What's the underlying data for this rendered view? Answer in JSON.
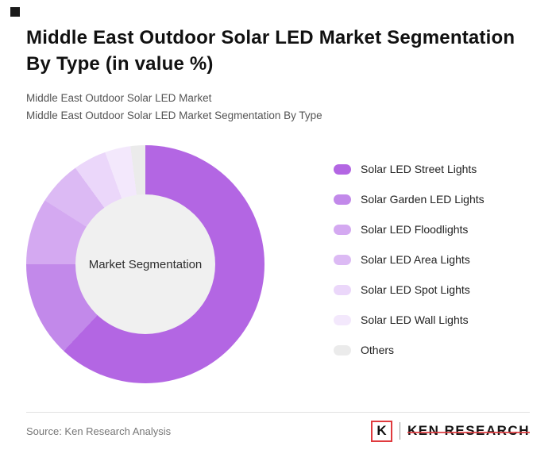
{
  "page": {
    "corner_square_color": "#1a1a1a"
  },
  "header": {
    "title_line1": "Middle East Outdoor Solar LED Market Segmentation",
    "title_line2": "By Type (in value %)",
    "subtitle_line1": "Middle East Outdoor Solar LED Market",
    "subtitle_line2": "Middle East Outdoor Solar LED Market Segmentation By Type"
  },
  "chart_data": {
    "type": "pie",
    "variant": "donut",
    "title": "Middle East Outdoor Solar LED Market Segmentation By Type (in value %)",
    "center_label": "Market Segmentation",
    "center_color": "#f0f0f0",
    "legend_position": "right",
    "data_labels_shown": false,
    "segments": [
      {
        "label": "Solar LED Street Lights",
        "value": 62,
        "color": "#b366e3"
      },
      {
        "label": "Solar Garden LED Lights",
        "value": 13,
        "color": "#c289ea"
      },
      {
        "label": "Solar LED Floodlights",
        "value": 9,
        "color": "#d4a9f1"
      },
      {
        "label": "Solar LED Area Lights",
        "value": 6,
        "color": "#dcbaf4"
      },
      {
        "label": "Solar LED Spot Lights",
        "value": 4.5,
        "color": "#ebd7fa"
      },
      {
        "label": "Solar LED Wall Lights",
        "value": 3.5,
        "color": "#f3e8fc"
      },
      {
        "label": "Others",
        "value": 2,
        "color": "#ebebeb"
      }
    ]
  },
  "footer": {
    "source": "Source: Ken Research Analysis",
    "logo": {
      "letter": "K",
      "brand": "KEN RESEARCH",
      "accent_color": "#e03a3e"
    }
  }
}
